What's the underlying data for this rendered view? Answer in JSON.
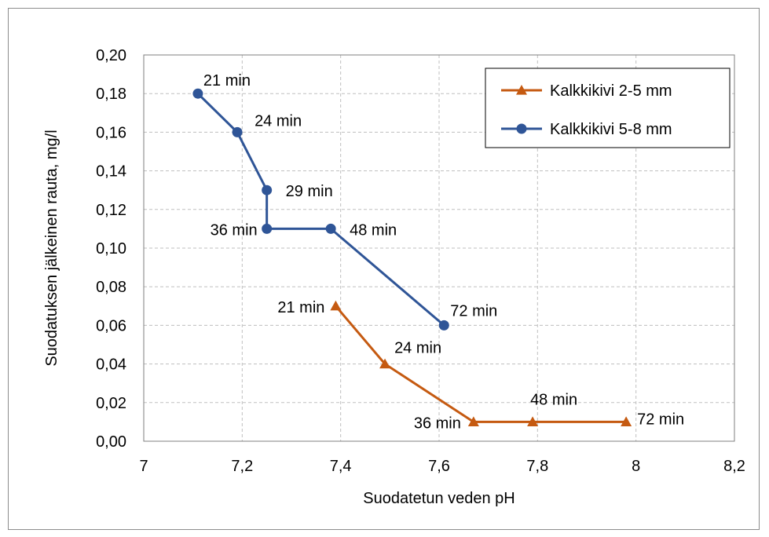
{
  "chart_data": {
    "type": "scatter",
    "xlabel": "Suodatetun veden pH",
    "ylabel": "Suodatuksen jälkeinen rauta, mg/l",
    "xlim": [
      7,
      8.2
    ],
    "ylim": [
      0,
      0.2
    ],
    "x_ticks": [
      7,
      7.2,
      7.4,
      7.6,
      7.8,
      8,
      8.2
    ],
    "x_tick_labels": [
      "7",
      "7,2",
      "7,4",
      "7,6",
      "7,8",
      "8",
      "8,2"
    ],
    "y_ticks": [
      0,
      0.02,
      0.04,
      0.06,
      0.08,
      0.1,
      0.12,
      0.14,
      0.16,
      0.18,
      0.2
    ],
    "y_tick_labels": [
      "0,00",
      "0,02",
      "0,04",
      "0,06",
      "0,08",
      "0,10",
      "0,12",
      "0,14",
      "0,16",
      "0,18",
      "0,20"
    ],
    "grid": true,
    "legend_position": "top-right",
    "series": [
      {
        "name": "Kalkkikivi 2-5 mm",
        "color": "#c55a11",
        "marker": "triangle",
        "x": [
          7.39,
          7.49,
          7.67,
          7.79,
          7.98
        ],
        "y": [
          0.07,
          0.04,
          0.01,
          0.01,
          0.01
        ],
        "labels": [
          "21 min",
          "24 min",
          "36 min",
          "48 min",
          "72 min"
        ]
      },
      {
        "name": "Kalkkikivi 5-8 mm",
        "color": "#2f5597",
        "marker": "circle",
        "x": [
          7.11,
          7.19,
          7.25,
          7.25,
          7.38,
          7.61
        ],
        "y": [
          0.18,
          0.16,
          0.13,
          0.11,
          0.11,
          0.06
        ],
        "labels": [
          "21 min",
          "24 min",
          "29 min",
          "36 min",
          "48 min",
          "72 min"
        ]
      }
    ]
  }
}
